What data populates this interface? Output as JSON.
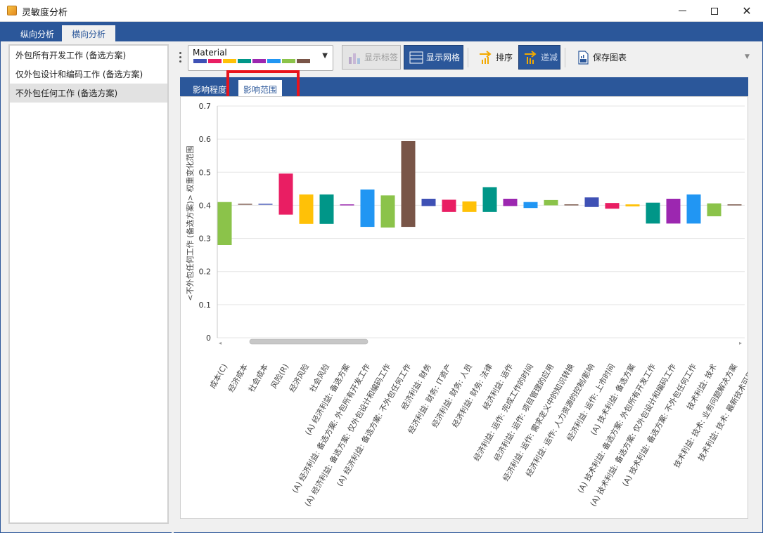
{
  "window": {
    "title": "灵敏度分析"
  },
  "top_tabs": [
    {
      "label": "纵向分析"
    },
    {
      "label": "横向分析"
    }
  ],
  "left_list": {
    "items": [
      {
        "label": "外包所有开发工作 (备选方案)"
      },
      {
        "label": "仅外包设计和编码工作 (备选方案)"
      },
      {
        "label": "不外包任何工作 (备选方案)"
      }
    ],
    "selected_index": 2
  },
  "toolbar": {
    "palette_name": "Material",
    "palette_colors": [
      "#3f51b5",
      "#e91e63",
      "#ffc107",
      "#009688",
      "#9c27b0",
      "#2196f3",
      "#8bc34a",
      "#795548"
    ],
    "show_labels": "显示标签",
    "show_grid": "显示网格",
    "sort": "排序",
    "descending": "递减",
    "save_chart": "保存图表"
  },
  "inner_tabs": [
    {
      "label": "影响程度"
    },
    {
      "label": "影响范围"
    }
  ],
  "chart_data": {
    "type": "bar",
    "subtype": "floating-range",
    "ylabel": "<不外包任何工作 (备选方案)> 权重变化范围",
    "ylim": [
      0,
      0.7
    ],
    "yticks": [
      "0.7",
      "0.6",
      "0.5",
      "0.4",
      "0.3",
      "0.2",
      "0.1",
      "0"
    ],
    "grid": true,
    "categories": [
      "成本(C)",
      "经济成本",
      "社会成本",
      "风险(R)",
      "经济风险",
      "社会风险",
      "(A) 经济利益: 备选方案",
      "(A) 经济利益: 备选方案: 外包所有开发工作",
      "(A) 经济利益: 备选方案: 仅外包设计和编码工作",
      "(A) 经济利益: 备选方案: 不外包任何工作",
      "经济利益: 财务",
      "经济利益: 财务: IT资产",
      "经济利益: 财务: 人员",
      "经济利益: 财务: 法律",
      "经济利益: 运作",
      "经济利益: 运作: 完成工作的时间",
      "经济利益: 运作: 项目管理的应用",
      "经济利益: 运作: 需求定义中的知识转换",
      "经济利益: 运作: 人力资源的控制/影响",
      "经济利益: 运作: 上市时间",
      "(A) 技术利益: 备选方案",
      "(A) 技术利益: 备选方案: 外包所有开发工作",
      "(A) 技术利益: 备选方案: 仅外包设计和编码工作",
      "(A) 技术利益: 备选方案: 不外包任何工作",
      "技术利益: 技术",
      "技术利益: 技术: 业务问题解决方案",
      "技术利益: 技术: 最新技术可用性"
    ],
    "ranges": [
      [
        0.28,
        0.41
      ],
      [
        0.402,
        0.405
      ],
      [
        0.402,
        0.405
      ],
      [
        0.372,
        0.496
      ],
      [
        0.344,
        0.433
      ],
      [
        0.344,
        0.433
      ],
      [
        0.401,
        0.403
      ],
      [
        0.335,
        0.448
      ],
      [
        0.333,
        0.43
      ],
      [
        0.335,
        0.594
      ],
      [
        0.398,
        0.42
      ],
      [
        0.38,
        0.417
      ],
      [
        0.38,
        0.412
      ],
      [
        0.38,
        0.455
      ],
      [
        0.398,
        0.42
      ],
      [
        0.392,
        0.41
      ],
      [
        0.4,
        0.416
      ],
      [
        0.4,
        0.403
      ],
      [
        0.395,
        0.424
      ],
      [
        0.39,
        0.407
      ],
      [
        0.397,
        0.403
      ],
      [
        0.345,
        0.408
      ],
      [
        0.345,
        0.42
      ],
      [
        0.345,
        0.433
      ],
      [
        0.367,
        0.406
      ],
      [
        0.401,
        0.403
      ],
      [
        0.401,
        0.403
      ]
    ],
    "colors": [
      "#8bc34a",
      "#795548",
      "#3f51b5",
      "#e91e63",
      "#ffc107",
      "#009688",
      "#9c27b0",
      "#2196f3",
      "#8bc34a",
      "#795548",
      "#3f51b5",
      "#e91e63",
      "#ffc107",
      "#009688",
      "#9c27b0",
      "#2196f3",
      "#8bc34a",
      "#795548",
      "#3f51b5",
      "#e91e63",
      "#ffc107",
      "#009688",
      "#9c27b0",
      "#2196f3",
      "#8bc34a",
      "#795548",
      "#3f51b5"
    ]
  }
}
